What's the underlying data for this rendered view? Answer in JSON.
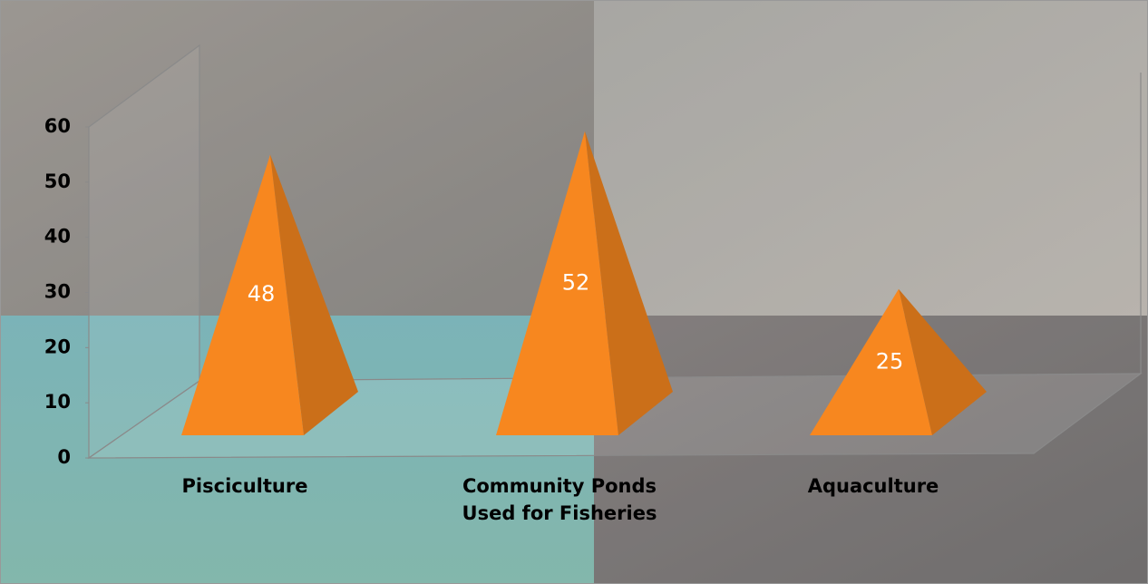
{
  "chart_data": {
    "type": "pyramid",
    "categories": [
      "Pisciculture",
      "Community Ponds Used for Fisheries",
      "Aquaculture"
    ],
    "values": [
      48,
      52,
      25
    ],
    "color": "#f7871f",
    "ylim": [
      0,
      60
    ],
    "yticks": [
      0,
      10,
      20,
      30,
      40,
      50,
      60
    ]
  }
}
